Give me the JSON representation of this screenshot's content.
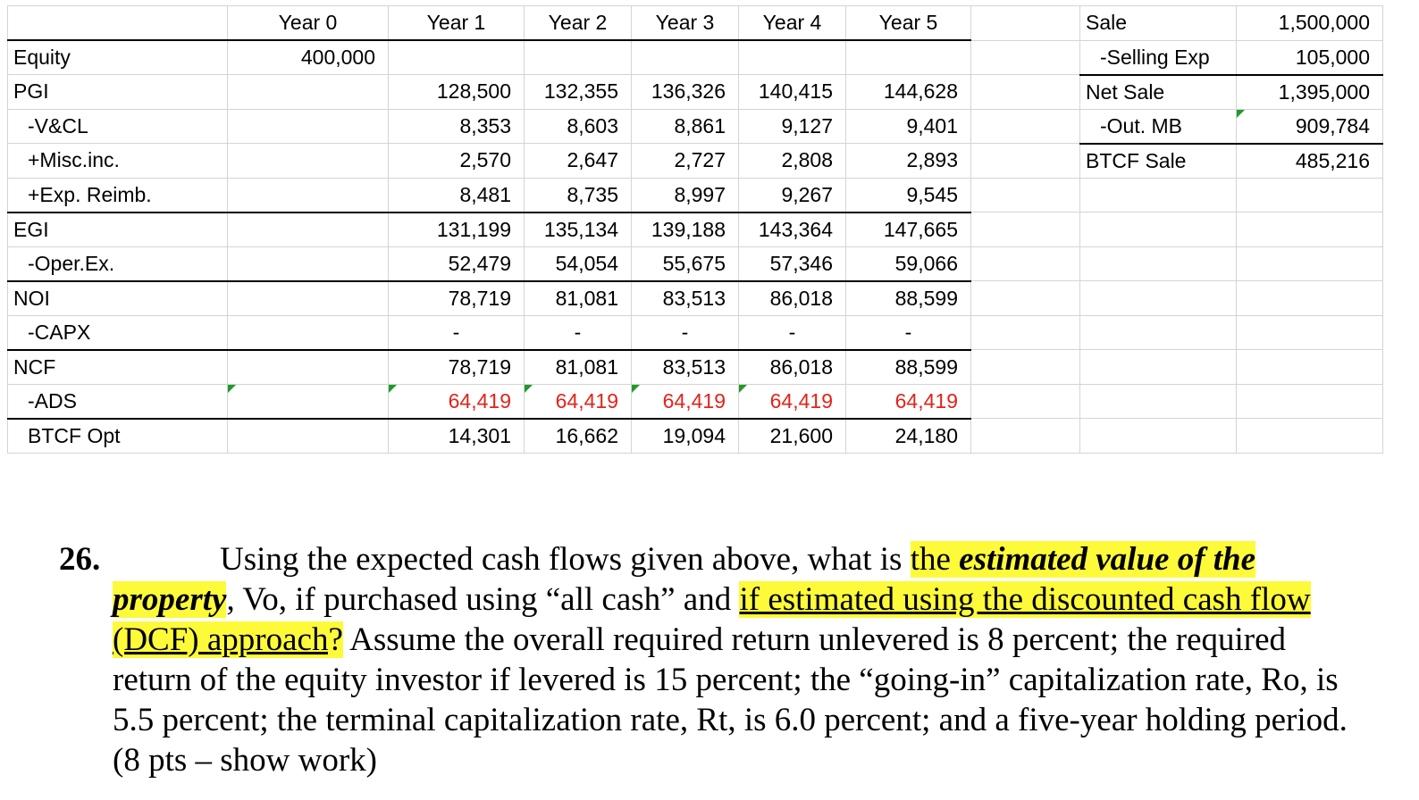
{
  "table": {
    "headers": [
      "",
      "Year 0",
      "Year 1",
      "Year 2",
      "Year 3",
      "Year 4",
      "Year 5",
      "",
      "Sale",
      "1,500,000"
    ],
    "rows": [
      {
        "label": "Equity",
        "y0": "400,000",
        "y1": "",
        "y2": "",
        "y3": "",
        "y4": "",
        "y5": ""
      },
      {
        "label": "PGI",
        "y0": "",
        "y1": "128,500",
        "y2": "132,355",
        "y3": "136,326",
        "y4": "140,415",
        "y5": "144,628"
      },
      {
        "label": "-V&CL",
        "y0": "",
        "y1": "8,353",
        "y2": "8,603",
        "y3": "8,861",
        "y4": "9,127",
        "y5": "9,401"
      },
      {
        "label": "+Misc.inc.",
        "y0": "",
        "y1": "2,570",
        "y2": "2,647",
        "y3": "2,727",
        "y4": "2,808",
        "y5": "2,893"
      },
      {
        "label": "+Exp. Reimb.",
        "y0": "",
        "y1": "8,481",
        "y2": "8,735",
        "y3": "8,997",
        "y4": "9,267",
        "y5": "9,545"
      },
      {
        "label": "EGI",
        "y0": "",
        "y1": "131,199",
        "y2": "135,134",
        "y3": "139,188",
        "y4": "143,364",
        "y5": "147,665"
      },
      {
        "label": "-Oper.Ex.",
        "y0": "",
        "y1": "52,479",
        "y2": "54,054",
        "y3": "55,675",
        "y4": "57,346",
        "y5": "59,066"
      },
      {
        "label": "NOI",
        "y0": "",
        "y1": "78,719",
        "y2": "81,081",
        "y3": "83,513",
        "y4": "86,018",
        "y5": "88,599"
      },
      {
        "label": "-CAPX",
        "y0": "",
        "y1": "-",
        "y2": "-",
        "y3": "-",
        "y4": "-",
        "y5": "-"
      },
      {
        "label": "NCF",
        "y0": "",
        "y1": "78,719",
        "y2": "81,081",
        "y3": "83,513",
        "y4": "86,018",
        "y5": "88,599"
      },
      {
        "label": "-ADS",
        "y0": "",
        "y1": "64,419",
        "y2": "64,419",
        "y3": "64,419",
        "y4": "64,419",
        "y5": "64,419"
      },
      {
        "label": "BTCF Opt",
        "y0": "",
        "y1": "14,301",
        "y2": "16,662",
        "y3": "19,094",
        "y4": "21,600",
        "y5": "24,180"
      }
    ],
    "sale": [
      {
        "label": "-Selling Exp",
        "value": "105,000"
      },
      {
        "label": "Net Sale",
        "value": "1,395,000"
      },
      {
        "label": "-Out. MB",
        "value": "909,784"
      },
      {
        "label": "BTCF Sale",
        "value": "485,216"
      }
    ],
    "ads_color": "#e2231a",
    "flag_color": "#1f9a2b"
  },
  "question": {
    "number": "26.",
    "part1": "Using the expected cash flows given above, what is ",
    "hl1": "the ",
    "hl1_bi": "estimated value of the property",
    "part2": ", Vo, if purchased using “all cash” and ",
    "hl2": "if estimated using the discounted cash flow (DCF) approach",
    "part3": "?",
    "part4": " Assume the overall required return unlevered is 8 percent; the required return of the equity investor if levered is 15 percent; the “going-in” capitalization rate, Ro, is 5.5 percent; the terminal capitalization rate, Rt, is 6.0 percent; and a five-year holding period. (8 pts – show work)",
    "highlight_color": "#fdfa3a"
  }
}
